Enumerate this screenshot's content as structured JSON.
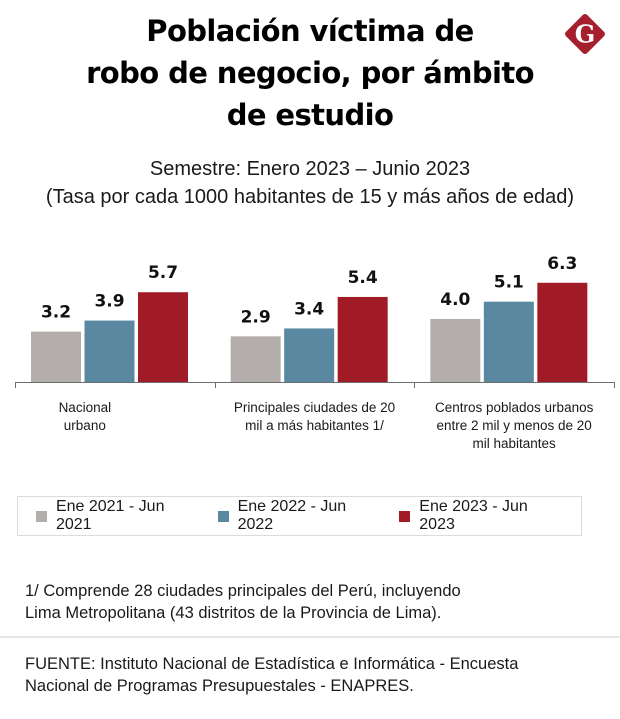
{
  "header": {
    "title_lines": [
      "Población víctima de",
      "robo de negocio, por ámbito",
      "de estudio"
    ],
    "subtitle_lines": [
      "Semestre: Enero 2023 – Junio 2023",
      "(Tasa por cada 1000 habitantes de 15 y más años de edad)"
    ],
    "logo": {
      "icon": "brand-g-diamond-icon",
      "letter": "G",
      "color": "#a51f2d"
    }
  },
  "chart_data": {
    "type": "bar",
    "title": "Población víctima de robo de negocio, por ámbito de estudio",
    "subtitle": "Semestre: Enero 2023 – Junio 2023 (Tasa por cada 1000 habitantes de 15 y más años de edad)",
    "xlabel": "",
    "ylabel": "",
    "ylim": [
      0,
      7
    ],
    "grid": false,
    "legend_position": "bottom",
    "categories": [
      [
        "Nacional",
        "urbano"
      ],
      [
        "Principales ciudades de 20",
        "mil a más habitantes 1/"
      ],
      [
        "Centros poblados urbanos",
        "entre 2 mil y menos de 20",
        "mil habitantes"
      ]
    ],
    "series": [
      {
        "name": "Ene 2021 - Jun 2021",
        "color": "#b3aeac",
        "values": [
          3.2,
          2.9,
          4.0
        ],
        "labels": [
          "3.2",
          "2.9",
          "4.0"
        ]
      },
      {
        "name": "Ene 2022 - Jun 2022",
        "color": "#5a88a0",
        "values": [
          3.9,
          3.4,
          5.1
        ],
        "labels": [
          "3.9",
          "3.4",
          "5.1"
        ]
      },
      {
        "name": "Ene 2023 - Jun 2023",
        "color": "#a01b26",
        "values": [
          5.7,
          5.4,
          6.3
        ],
        "labels": [
          "5.7",
          "5.4",
          "6.3"
        ]
      }
    ]
  },
  "footer": {
    "note_lines": [
      "1/ Comprende 28 ciudades principales del Perú, incluyendo",
      "Lima Metropolitana (43 distritos de la Provincia de Lima)."
    ],
    "source_lines": [
      "FUENTE: Instituto Nacional de Estadística e Informática - Encuesta",
      "Nacional de Programas Presupuestales - ENAPRES."
    ]
  }
}
